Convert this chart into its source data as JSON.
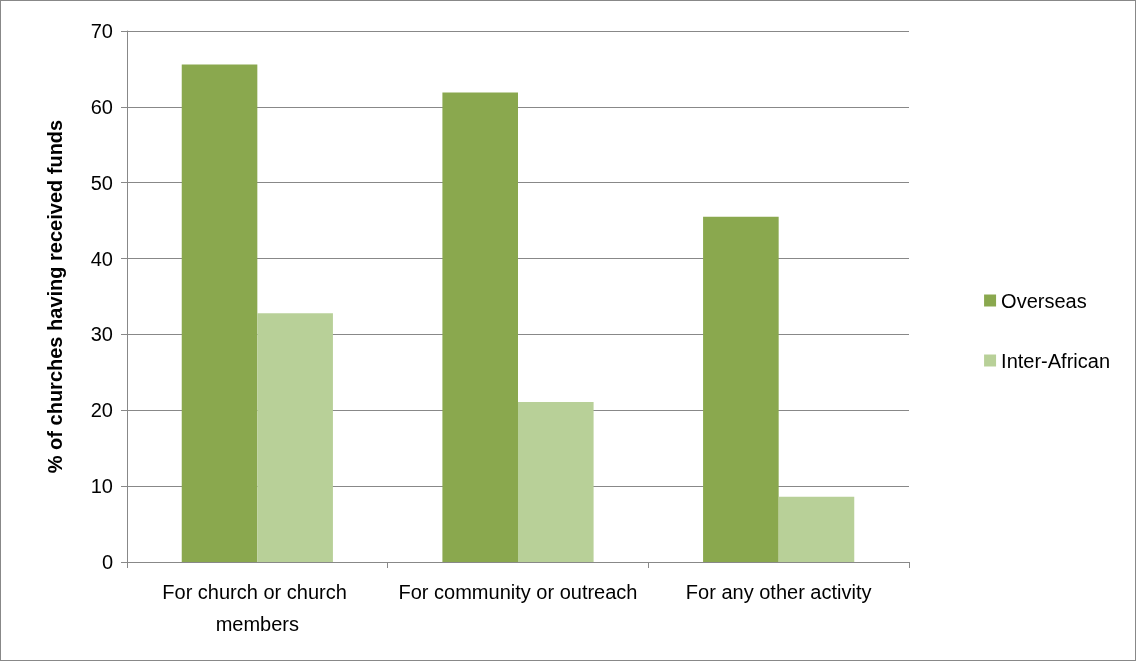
{
  "chart_data": {
    "type": "bar",
    "ylabel": "% of churches having received funds",
    "categories": [
      "For church or church members",
      "For community or outreach",
      "For any other activity"
    ],
    "series": [
      {
        "name": "Overseas",
        "color": "#8aa84e",
        "values": [
          65.6,
          61.9,
          45.5
        ]
      },
      {
        "name": "Inter-African",
        "color": "#b8d098",
        "values": [
          32.8,
          21.1,
          8.6
        ]
      }
    ],
    "ylim": [
      0,
      70
    ],
    "yticks": [
      0,
      10,
      20,
      30,
      40,
      50,
      60,
      70
    ],
    "grid": "y",
    "legend": "right"
  }
}
